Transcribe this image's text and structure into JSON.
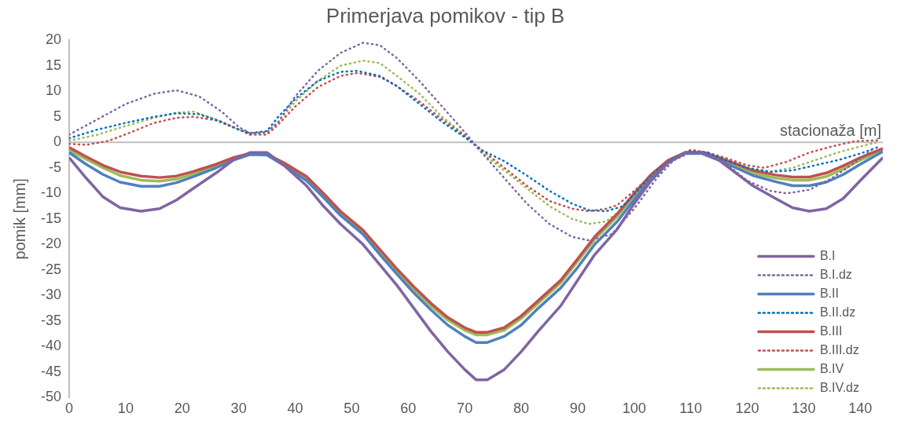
{
  "chart_data": {
    "type": "line",
    "title": "Primerjava pomikov - tip B",
    "xlabel": "stacionaža [m]",
    "ylabel": "pomik [mm]",
    "xlim": [
      0,
      144
    ],
    "xticks": [
      0,
      10,
      20,
      30,
      40,
      50,
      60,
      70,
      80,
      90,
      100,
      110,
      120,
      130,
      140
    ],
    "ylim": [
      -50,
      20
    ],
    "yticks": [
      -50,
      -45,
      -40,
      -35,
      -30,
      -25,
      -20,
      -15,
      -10,
      -5,
      0,
      5,
      10,
      15,
      20
    ],
    "grid": false,
    "ref_lines": [
      {
        "axis": "y",
        "value": 0,
        "color": "#bfbfbf",
        "line_style": "solid"
      }
    ],
    "legend": "bottom right",
    "marker": "none",
    "series": [
      {
        "name": "B.I",
        "color": "#8064a2",
        "line_style": "solid",
        "x": [
          0,
          3,
          6,
          9,
          12.7,
          16,
          19,
          22,
          26,
          29,
          32,
          35,
          38,
          42,
          45,
          48,
          52,
          55,
          58,
          61,
          64,
          67,
          70,
          72,
          74,
          77,
          80,
          83,
          87,
          90,
          93,
          97,
          100,
          103,
          106,
          109,
          112,
          115,
          118,
          121,
          125,
          128,
          131,
          134,
          137,
          140,
          144
        ],
        "values": [
          -3,
          -7,
          -10.7,
          -12.8,
          -13.5,
          -13,
          -11.3,
          -9,
          -6,
          -3.5,
          -2,
          -2,
          -4.5,
          -8.5,
          -12.5,
          -16,
          -20,
          -24,
          -28,
          -32.5,
          -37,
          -41,
          -44.5,
          -46.5,
          -46.5,
          -44.5,
          -41,
          -37,
          -32,
          -27,
          -22,
          -17,
          -12,
          -7.5,
          -4,
          -2,
          -2,
          -3.5,
          -6,
          -8.5,
          -11,
          -12.8,
          -13.5,
          -13,
          -11,
          -7.5,
          -3
        ]
      },
      {
        "name": "B.I.dz",
        "color": "#8064a2",
        "line_style": "dotted",
        "x": [
          0,
          5,
          10,
          15,
          19,
          23,
          27,
          30,
          32,
          35,
          37,
          40,
          44,
          48,
          52,
          55,
          58,
          62,
          66,
          70,
          73,
          77,
          81,
          85,
          89,
          92,
          96,
          100,
          104,
          107,
          110,
          113,
          116,
          120,
          124,
          127,
          131,
          135,
          139,
          142
        ],
        "values": [
          1.5,
          4.5,
          7.5,
          9.5,
          10.2,
          9,
          6,
          3,
          1.8,
          2,
          4,
          9,
          14,
          17.5,
          19.5,
          19,
          16.5,
          12,
          7,
          2,
          -2,
          -7,
          -12,
          -16,
          -18.5,
          -19.2,
          -18,
          -13,
          -7,
          -3.5,
          -2,
          -2,
          -4,
          -7.5,
          -9.5,
          -10,
          -9.3,
          -7,
          -4,
          -1.5
        ]
      },
      {
        "name": "B.II",
        "color": "#4f81bd",
        "line_style": "solid",
        "x": [
          0,
          3,
          6,
          9,
          12.7,
          16,
          19,
          22,
          26,
          29,
          32,
          35,
          38,
          42,
          45,
          48,
          52,
          55,
          58,
          61,
          64,
          67,
          70,
          72,
          74,
          77,
          80,
          83,
          87,
          90,
          93,
          97,
          100,
          103,
          106,
          109,
          112,
          115,
          118,
          121,
          125,
          128,
          131,
          134,
          137,
          140,
          144
        ],
        "values": [
          -2,
          -4.3,
          -6.3,
          -7.8,
          -8.6,
          -8.6,
          -7.9,
          -6.7,
          -5,
          -3.5,
          -2.4,
          -2.5,
          -4.5,
          -7.5,
          -10.8,
          -14.3,
          -18,
          -22,
          -25.8,
          -29.5,
          -32.8,
          -35.8,
          -38,
          -39.2,
          -39.2,
          -38,
          -35.8,
          -32.5,
          -28.5,
          -24.5,
          -20,
          -15.5,
          -11.2,
          -7,
          -4,
          -2.2,
          -2.2,
          -3.5,
          -5,
          -6.5,
          -7.7,
          -8.5,
          -8.5,
          -7.8,
          -6.3,
          -4.3,
          -1.8
        ]
      },
      {
        "name": "B.II.dz",
        "color": "#0070c0",
        "line_style": "dotted",
        "x": [
          0,
          5,
          10,
          15,
          19,
          23,
          27,
          30,
          32,
          35,
          37,
          40,
          44,
          48,
          51,
          55,
          58,
          62,
          66,
          70,
          73,
          77,
          81,
          85,
          89,
          92,
          95,
          98,
          101,
          104,
          107,
          110,
          113,
          116,
          120,
          124,
          128,
          132,
          136,
          140,
          143
        ],
        "values": [
          0.8,
          2.5,
          3.8,
          5,
          5.7,
          5.5,
          4,
          2.5,
          1.8,
          2.2,
          5,
          8.5,
          12,
          13.8,
          14,
          13,
          11,
          7.5,
          4,
          1,
          -1.5,
          -3.7,
          -6.5,
          -9.5,
          -12,
          -13.3,
          -13.5,
          -12.5,
          -9,
          -5.5,
          -3,
          -1.7,
          -2,
          -3.5,
          -5,
          -5.8,
          -5.5,
          -4.5,
          -3.5,
          -2.2,
          -1
        ]
      },
      {
        "name": "B.III",
        "color": "#c0504d",
        "line_style": "solid",
        "x": [
          0,
          3,
          6,
          9,
          12.7,
          16,
          19,
          22,
          26,
          29,
          32,
          35,
          38,
          42,
          45,
          48,
          52,
          55,
          58,
          61,
          64,
          67,
          70,
          72,
          74,
          77,
          80,
          83,
          87,
          90,
          93,
          97,
          100,
          103,
          106,
          109,
          112,
          115,
          118,
          121,
          125,
          128,
          131,
          134,
          137,
          140,
          144
        ],
        "values": [
          -1,
          -2.8,
          -4.5,
          -5.8,
          -6.6,
          -6.9,
          -6.6,
          -5.7,
          -4.3,
          -3,
          -2.2,
          -2.3,
          -4,
          -6.7,
          -10,
          -13.5,
          -17.2,
          -21,
          -24.8,
          -28.3,
          -31.5,
          -34.3,
          -36.3,
          -37.2,
          -37.2,
          -36.3,
          -34,
          -31,
          -27,
          -22.8,
          -18.5,
          -14,
          -10,
          -6.3,
          -3.5,
          -2,
          -2,
          -3,
          -4.2,
          -5.5,
          -6.4,
          -6.8,
          -6.8,
          -6,
          -4.6,
          -3,
          -1.2
        ]
      },
      {
        "name": "B.III.dz",
        "color": "#c0504d",
        "line_style": "dotted",
        "x": [
          0,
          3,
          7,
          11,
          15,
          19,
          22,
          26,
          30,
          32,
          35,
          37,
          40,
          44,
          48,
          51,
          55,
          58,
          62,
          66,
          70,
          73,
          77,
          81,
          85,
          89,
          92,
          95,
          97,
          100,
          104,
          107,
          110,
          113,
          116,
          120,
          123,
          127,
          131,
          135,
          139,
          143
        ],
        "values": [
          -0.3,
          -0.5,
          0.3,
          2,
          3.8,
          4.8,
          5,
          4.3,
          2.5,
          1.5,
          1.5,
          3.5,
          7,
          10.8,
          13,
          13.6,
          12.8,
          11,
          8,
          4.5,
          1.3,
          -1.5,
          -5,
          -8.5,
          -11.5,
          -13,
          -13.5,
          -13,
          -12.3,
          -9.5,
          -5.5,
          -3,
          -1.5,
          -2,
          -3,
          -4.5,
          -5,
          -3.8,
          -2,
          -0.8,
          0.2,
          0.4
        ]
      },
      {
        "name": "B.IV",
        "color": "#9bbb59",
        "line_style": "solid",
        "x": [
          0,
          3,
          6,
          9,
          12.7,
          16,
          19,
          22,
          26,
          29,
          32,
          35,
          38,
          42,
          45,
          48,
          52,
          55,
          58,
          61,
          64,
          67,
          70,
          72,
          74,
          77,
          80,
          83,
          87,
          90,
          93,
          97,
          100,
          103,
          106,
          109,
          112,
          115,
          118,
          121,
          125,
          128,
          131,
          134,
          137,
          140,
          144
        ],
        "values": [
          -1.5,
          -3.3,
          -5,
          -6.5,
          -7.4,
          -7.6,
          -7.2,
          -6.2,
          -4.7,
          -3.3,
          -2.3,
          -2.4,
          -4.2,
          -7,
          -10.3,
          -13.9,
          -17.6,
          -21.4,
          -25.2,
          -28.8,
          -32,
          -34.8,
          -36.8,
          -37.7,
          -37.7,
          -36.8,
          -34.5,
          -31.5,
          -27.5,
          -23.3,
          -19,
          -14.5,
          -10.4,
          -6.6,
          -3.7,
          -2,
          -2,
          -3.2,
          -4.6,
          -6,
          -7,
          -7.4,
          -7.4,
          -6.7,
          -5.2,
          -3.5,
          -1.5
        ]
      },
      {
        "name": "B.IV.dz",
        "color": "#9bbb59",
        "line_style": "dotted",
        "x": [
          0,
          5,
          10,
          15,
          19,
          22,
          26,
          30,
          32,
          35,
          37,
          40,
          44,
          48,
          52,
          55,
          58,
          62,
          66,
          70,
          73,
          77,
          81,
          85,
          89,
          92,
          95,
          98,
          101,
          104,
          107,
          110,
          113,
          116,
          120,
          124,
          128,
          132,
          136,
          140,
          143
        ],
        "values": [
          0.3,
          1.5,
          3.2,
          4.8,
          5.8,
          6,
          4.5,
          2.5,
          1.5,
          1.8,
          4,
          8,
          12,
          15,
          16,
          15.5,
          13,
          9.5,
          5,
          1.5,
          -2,
          -5.5,
          -9,
          -12.5,
          -15,
          -16,
          -15.5,
          -13,
          -9,
          -5.5,
          -3,
          -1.5,
          -2,
          -3.5,
          -5,
          -5.7,
          -5,
          -3.5,
          -2,
          -0.8,
          0
        ]
      }
    ]
  }
}
